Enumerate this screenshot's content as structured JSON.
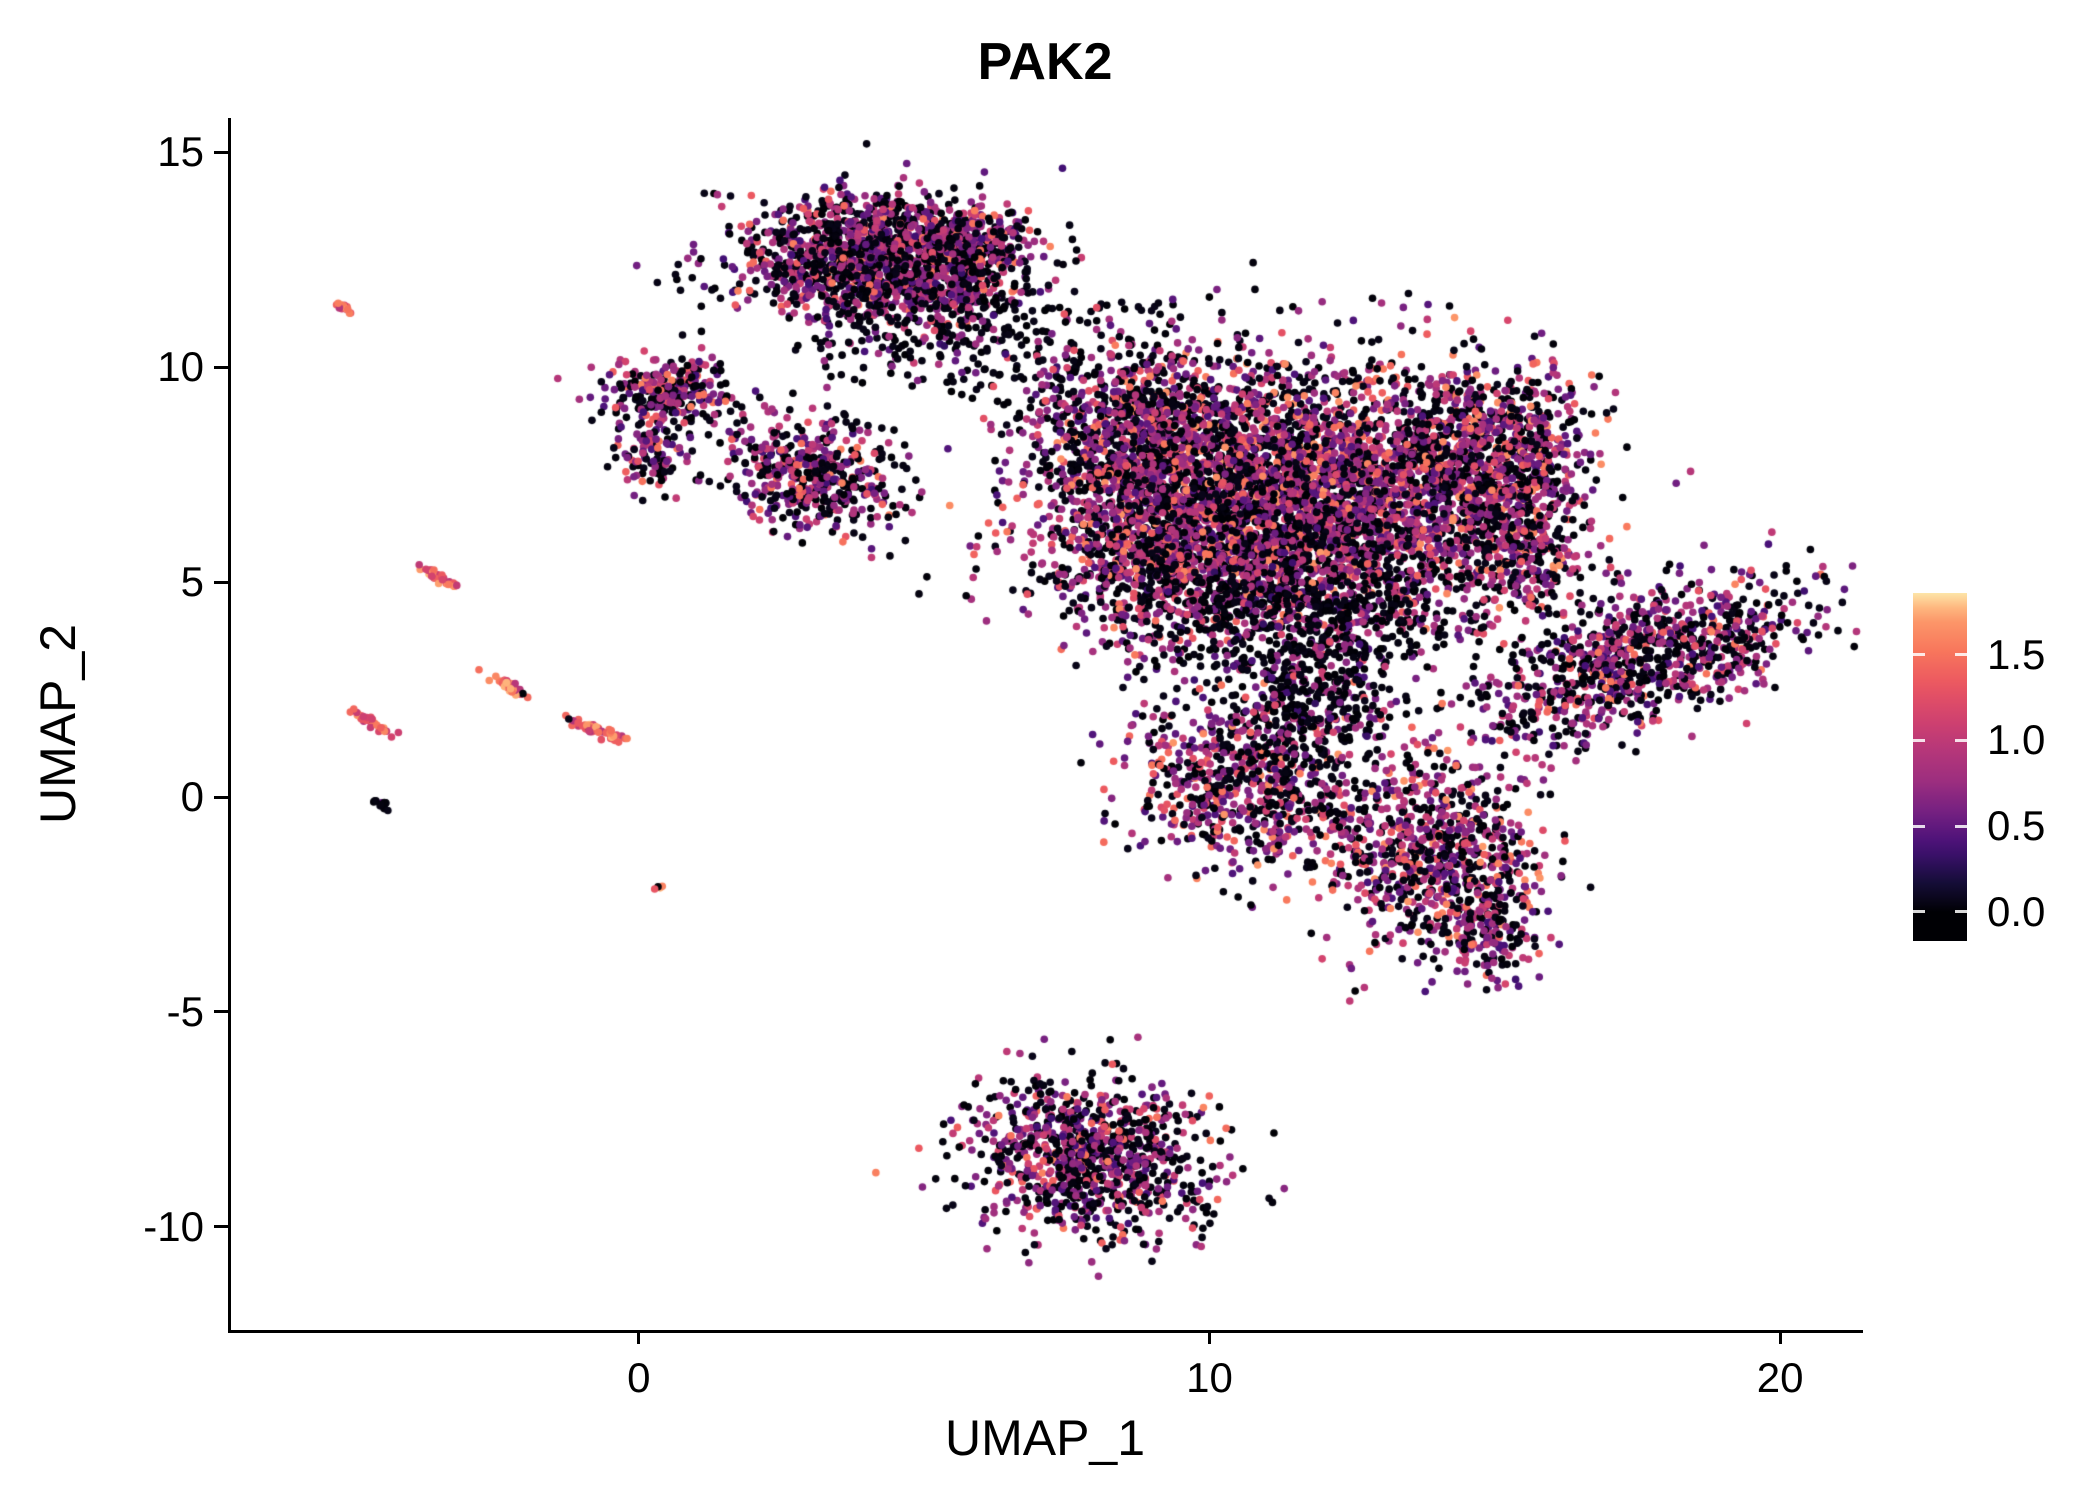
{
  "title": "PAK2",
  "chart_data": {
    "type": "scatter",
    "title": "PAK2",
    "xlabel": "UMAP_1",
    "ylabel": "UMAP_2",
    "xlim": [
      -7.2,
      21.4
    ],
    "ylim": [
      -12.4,
      15.8
    ],
    "grid": "off",
    "x_ticks": [
      {
        "v": 0,
        "label": "0"
      },
      {
        "v": 10,
        "label": "10"
      },
      {
        "v": 20,
        "label": "20"
      }
    ],
    "y_ticks": [
      {
        "v": -10,
        "label": "-10"
      },
      {
        "v": -5,
        "label": "-5"
      },
      {
        "v": 0,
        "label": "0"
      },
      {
        "v": 5,
        "label": "5"
      },
      {
        "v": 10,
        "label": "10"
      },
      {
        "v": 15,
        "label": "15"
      }
    ],
    "value_range": [
      0,
      1.9
    ],
    "colorbar": {
      "position": "right",
      "bar_range": [
        -0.17,
        1.86
      ],
      "ticks": [
        {
          "value": 0.0,
          "label": "0.0"
        },
        {
          "value": 0.5,
          "label": "0.5"
        },
        {
          "value": 1.0,
          "label": "1.0"
        },
        {
          "value": 1.5,
          "label": "1.5"
        }
      ],
      "colormap": "magma",
      "stops": [
        [
          0.0,
          "#000004"
        ],
        [
          0.1,
          "#180f3e"
        ],
        [
          0.2,
          "#451077"
        ],
        [
          0.3,
          "#721f81"
        ],
        [
          0.4,
          "#9c2e7f"
        ],
        [
          0.5,
          "#b73779"
        ],
        [
          0.6,
          "#d3436e"
        ],
        [
          0.7,
          "#eb5760"
        ],
        [
          0.8,
          "#f8765c"
        ],
        [
          0.9,
          "#fd9a6a"
        ],
        [
          0.95,
          "#fec488"
        ],
        [
          1.0,
          "#fcfdbf"
        ]
      ]
    },
    "generation": {
      "seed": 20240217,
      "point_radius": 3.8
    },
    "profiles": {
      "standard": {
        "p_zero": 0.44,
        "mid": [
          0.35,
          1.05
        ],
        "p_mid": 0.44,
        "hi": [
          1.05,
          1.6
        ]
      },
      "main": {
        "p_zero": 0.41,
        "mid": [
          0.4,
          1.05
        ],
        "p_mid": 0.43,
        "hi": [
          1.05,
          1.7
        ]
      },
      "dark": {
        "p_zero": 0.72,
        "mid": [
          0.3,
          0.9
        ],
        "p_mid": 0.24,
        "hi": [
          0.9,
          1.3
        ]
      },
      "high": {
        "p_zero": 0.04,
        "mid": [
          0.9,
          1.3
        ],
        "p_mid": 0.36,
        "hi": [
          1.3,
          1.8
        ]
      }
    },
    "clusters": [
      {
        "name": "top-blob",
        "cx": 4.2,
        "cy": 12.5,
        "sx": 1.15,
        "sy": 0.7,
        "angle": 0,
        "n": 1500,
        "profile": "standard"
      },
      {
        "name": "top-blob-east",
        "cx": 5.9,
        "cy": 12.8,
        "sx": 0.55,
        "sy": 0.45,
        "angle": 0,
        "n": 220,
        "profile": "standard"
      },
      {
        "name": "top-blob-tail",
        "cx": 5.0,
        "cy": 11.2,
        "sx": 1.1,
        "sy": 0.8,
        "angle": 0,
        "n": 260,
        "profile": "dark"
      },
      {
        "name": "bridge-scatter",
        "cx": 7.3,
        "cy": 10.3,
        "sx": 1.1,
        "sy": 0.75,
        "angle": 0,
        "n": 140,
        "profile": "dark"
      },
      {
        "name": "left-small-upper",
        "cx": 0.55,
        "cy": 9.4,
        "sx": 0.6,
        "sy": 0.42,
        "angle": 0,
        "n": 280,
        "profile": "standard"
      },
      {
        "name": "left-small-hook",
        "cx": 0.2,
        "cy": 8.0,
        "sx": 0.3,
        "sy": 0.4,
        "angle": 0,
        "n": 90,
        "profile": "standard"
      },
      {
        "name": "mid-small",
        "cx": 3.1,
        "cy": 7.5,
        "sx": 0.8,
        "sy": 0.62,
        "angle": -20,
        "n": 480,
        "profile": "standard"
      },
      {
        "name": "main-core",
        "cx": 11.4,
        "cy": 6.9,
        "sx": 2.0,
        "sy": 1.55,
        "angle": 0,
        "n": 4300,
        "profile": "main"
      },
      {
        "name": "main-west",
        "cx": 8.7,
        "cy": 8.6,
        "sx": 0.95,
        "sy": 1.0,
        "angle": 0,
        "n": 650,
        "profile": "main"
      },
      {
        "name": "main-southwest",
        "cx": 8.9,
        "cy": 5.6,
        "sx": 0.8,
        "sy": 0.95,
        "angle": 0,
        "n": 480,
        "profile": "main"
      },
      {
        "name": "main-south-tail",
        "cx": 11.7,
        "cy": 4.2,
        "sx": 1.5,
        "sy": 0.8,
        "angle": 0,
        "n": 500,
        "profile": "dark"
      },
      {
        "name": "main-east-arm",
        "cx": 14.9,
        "cy": 7.9,
        "sx": 0.85,
        "sy": 1.05,
        "angle": 0,
        "n": 750,
        "profile": "main"
      },
      {
        "name": "main-east-lower",
        "cx": 15.5,
        "cy": 5.9,
        "sx": 0.55,
        "sy": 0.9,
        "angle": 0,
        "n": 280,
        "profile": "main"
      },
      {
        "name": "right-wing",
        "cx": 17.6,
        "cy": 3.2,
        "sx": 1.55,
        "sy": 0.7,
        "angle": 28,
        "n": 950,
        "profile": "standard"
      },
      {
        "name": "south-central",
        "cx": 10.7,
        "cy": 0.4,
        "sx": 1.05,
        "sy": 1.0,
        "angle": 0,
        "n": 750,
        "profile": "main"
      },
      {
        "name": "south-central-neck",
        "cx": 11.9,
        "cy": 2.2,
        "sx": 0.7,
        "sy": 0.8,
        "angle": 0,
        "n": 250,
        "profile": "dark"
      },
      {
        "name": "south-east",
        "cx": 14.0,
        "cy": -1.3,
        "sx": 0.95,
        "sy": 1.15,
        "angle": -15,
        "n": 750,
        "profile": "main"
      },
      {
        "name": "south-east-tail",
        "cx": 14.9,
        "cy": -3.0,
        "sx": 0.45,
        "sy": 0.6,
        "angle": 0,
        "n": 160,
        "profile": "standard"
      },
      {
        "name": "bottom-island",
        "cx": 7.9,
        "cy": -8.4,
        "sx": 1.05,
        "sy": 0.85,
        "angle": -25,
        "n": 950,
        "profile": "standard"
      },
      {
        "name": "streak-far-topleft",
        "cx": -5.15,
        "cy": 11.4,
        "sx": 0.1,
        "sy": 0.04,
        "angle": -35,
        "n": 14,
        "profile": "high"
      },
      {
        "name": "streak-a",
        "cx": -3.55,
        "cy": 5.15,
        "sx": 0.22,
        "sy": 0.05,
        "angle": -38,
        "n": 40,
        "profile": "high"
      },
      {
        "name": "streak-b",
        "cx": -2.25,
        "cy": 2.55,
        "sx": 0.2,
        "sy": 0.05,
        "angle": -38,
        "n": 35,
        "profile": "high"
      },
      {
        "name": "streak-c",
        "cx": -4.75,
        "cy": 1.8,
        "sx": 0.2,
        "sy": 0.05,
        "angle": -38,
        "n": 32,
        "profile": "high"
      },
      {
        "name": "streak-d",
        "cx": -0.7,
        "cy": 1.55,
        "sx": 0.26,
        "sy": 0.06,
        "angle": -30,
        "n": 45,
        "profile": "high"
      },
      {
        "name": "dot-black",
        "cx": -4.5,
        "cy": -0.15,
        "sx": 0.09,
        "sy": 0.04,
        "angle": -30,
        "n": 12,
        "profile": "dark"
      },
      {
        "name": "dot-orange",
        "cx": 0.35,
        "cy": -2.1,
        "sx": 0.05,
        "sy": 0.04,
        "angle": 0,
        "n": 4,
        "profile": "high"
      }
    ]
  }
}
